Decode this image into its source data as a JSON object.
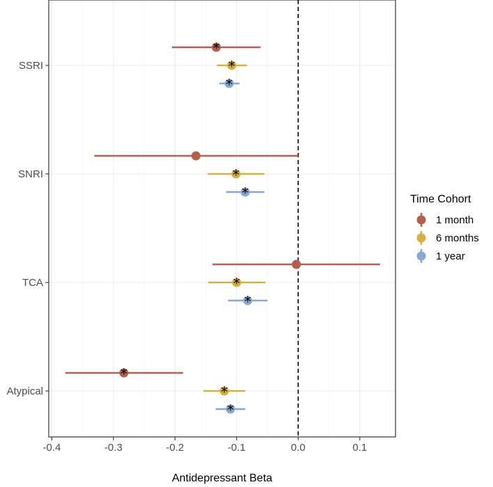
{
  "chart_data": {
    "type": "forest",
    "xlabel": "Antidepressant Beta",
    "xlim": [
      -0.405,
      0.158
    ],
    "x_ticks": [
      -0.4,
      -0.3,
      -0.2,
      -0.1,
      0.0,
      0.1
    ],
    "x_tick_labels": [
      "-0.4",
      "-0.3",
      "-0.2",
      "-0.1",
      "0.0",
      "0.1"
    ],
    "reference_line": 0,
    "grid": true,
    "categories": [
      "SSRI",
      "SNRI",
      "TCA",
      "Atypical"
    ],
    "legend": {
      "title": "Time Cohort",
      "placement": "right"
    },
    "series": [
      {
        "name": "1 month",
        "color": "#b5604f",
        "points": [
          {
            "category": "SSRI",
            "estimate": -0.133,
            "lower": -0.205,
            "upper": -0.061,
            "significant": true
          },
          {
            "category": "SNRI",
            "estimate": -0.166,
            "lower": -0.331,
            "upper": 0.0,
            "significant": false
          },
          {
            "category": "TCA",
            "estimate": -0.003,
            "lower": -0.139,
            "upper": 0.133,
            "significant": false
          },
          {
            "category": "Atypical",
            "estimate": -0.283,
            "lower": -0.378,
            "upper": -0.187,
            "significant": true
          }
        ]
      },
      {
        "name": "6 months",
        "color": "#d4b13e",
        "points": [
          {
            "category": "SSRI",
            "estimate": -0.108,
            "lower": -0.132,
            "upper": -0.083,
            "significant": true
          },
          {
            "category": "SNRI",
            "estimate": -0.101,
            "lower": -0.147,
            "upper": -0.055,
            "significant": true
          },
          {
            "category": "TCA",
            "estimate": -0.1,
            "lower": -0.146,
            "upper": -0.053,
            "significant": true
          },
          {
            "category": "Atypical",
            "estimate": -0.12,
            "lower": -0.154,
            "upper": -0.086,
            "significant": true
          }
        ]
      },
      {
        "name": "1 year",
        "color": "#88a8d2",
        "points": [
          {
            "category": "SSRI",
            "estimate": -0.112,
            "lower": -0.128,
            "upper": -0.095,
            "significant": true
          },
          {
            "category": "SNRI",
            "estimate": -0.086,
            "lower": -0.117,
            "upper": -0.055,
            "significant": true
          },
          {
            "category": "TCA",
            "estimate": -0.082,
            "lower": -0.114,
            "upper": -0.05,
            "significant": true
          },
          {
            "category": "Atypical",
            "estimate": -0.11,
            "lower": -0.134,
            "upper": -0.086,
            "significant": true
          }
        ]
      }
    ]
  }
}
